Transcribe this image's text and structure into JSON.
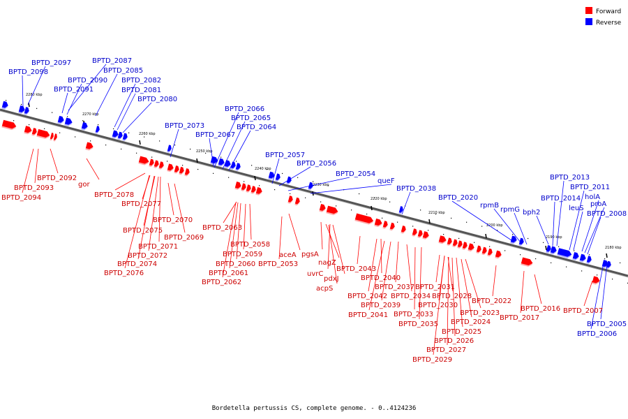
{
  "caption": "Bordetella pertussis CS, complete genome. - 0..4124236",
  "legend": [
    {
      "label": "Forward",
      "color": "#ff0000"
    },
    {
      "label": "Reverse",
      "color": "#0000ff"
    }
  ],
  "ruler_labels": [
    "2280 kbp",
    "2270 kbp",
    "2260 kbp",
    "2250 kbp",
    "2240 kbp",
    "2230 kbp",
    "2220 kbp",
    "2210 kbp",
    "2200 kbp",
    "2190 kbp",
    "2180 kbp"
  ],
  "forward_labels": [
    "BPTD_2092",
    "BPTD_2093",
    "BPTD_2094",
    "gor",
    "BPTD_2078",
    "BPTD_2077",
    "BPTD_2070",
    "BPTD_2075",
    "BPTD_2069",
    "BPTD_2071",
    "BPTD_2072",
    "BPTD_2074",
    "BPTD_2076",
    "BPTD_2063",
    "BPTD_2058",
    "BPTD_2059",
    "BPTD_2060",
    "BPTD_2061",
    "BPTD_2062",
    "aceA",
    "BPTD_2053",
    "pgsA",
    "uvrC",
    "nagZ",
    "pdxJ",
    "acpS",
    "BPTD_2043",
    "BPTD_2040",
    "BPTD_2042",
    "BPTD_2037",
    "BPTD_2039",
    "BPTD_2034",
    "BPTD_2041",
    "BPTD_2033",
    "BPTD_2035",
    "BPTD_2031",
    "BPTD_2028",
    "BPTD_2030",
    "BPTD_2024",
    "BPTD_2023",
    "BPTD_2025",
    "BPTD_2026",
    "BPTD_2027",
    "BPTD_2029",
    "BPTD_2022",
    "BPTD_2016",
    "BPTD_2017",
    "BPTD_2007"
  ],
  "reverse_labels": [
    "BPTD_2097",
    "BPTD_2098",
    "BPTD_2087",
    "BPTD_2090",
    "BPTD_2085",
    "BPTD_2091",
    "BPTD_2082",
    "BPTD_2081",
    "BPTD_2080",
    "BPTD_2073",
    "BPTD_2066",
    "BPTD_2065",
    "BPTD_2064",
    "BPTD_2067",
    "BPTD_2057",
    "BPTD_2056",
    "BPTD_2054",
    "queF",
    "BPTD_2038",
    "BPTD_2020",
    "rpmB",
    "rpmG",
    "bph2",
    "BPTD_2013",
    "BPTD_2011",
    "BPTD_2014",
    "holA",
    "leuS",
    "proA",
    "BPTD_2008",
    "BPTD_2005",
    "BPTD_2006"
  ]
}
